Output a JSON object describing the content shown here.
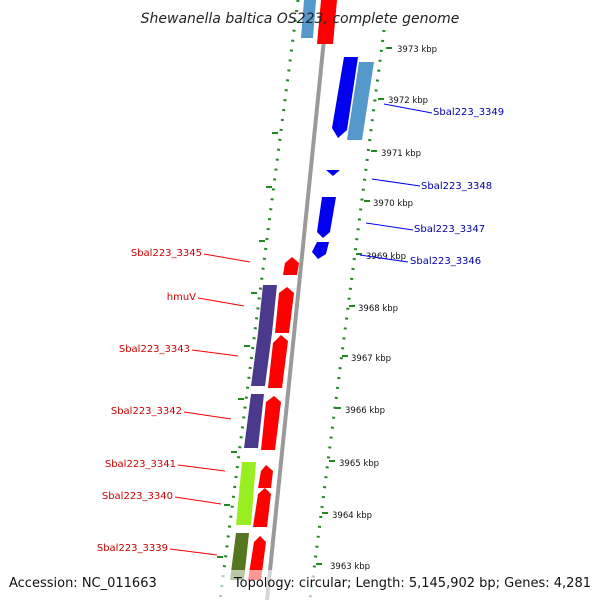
{
  "title": "Shewanella baltica OS223, complete genome",
  "footer": {
    "accession": "Accession: NC_011663",
    "topology": "Topology: circular; Length: 5,145,902 bp; Genes: 4,281"
  },
  "colors": {
    "forward_label": "#cc0000",
    "reverse_label": "#0000aa",
    "forward_gene": "#ff0000",
    "reverse_gene": "#0000ee",
    "purple_gene": "#4b3a8c",
    "light_green_gene": "#99ee22",
    "olive_gene": "#557722",
    "steel_blue_gene": "#5599cc",
    "guide_dots": "#228822"
  },
  "ticks": [
    {
      "label": "3973 kbp",
      "value": 3973
    },
    {
      "label": "3972 kbp",
      "value": 3972
    },
    {
      "label": "3971 kbp",
      "value": 3971
    },
    {
      "label": "3970 kbp",
      "value": 3970
    },
    {
      "label": "3969 kbp",
      "value": 3969
    },
    {
      "label": "3968 kbp",
      "value": 3968
    },
    {
      "label": "3967 kbp",
      "value": 3967
    },
    {
      "label": "3966 kbp",
      "value": 3966
    },
    {
      "label": "3965 kbp",
      "value": 3965
    },
    {
      "label": "3964 kbp",
      "value": 3964
    },
    {
      "label": "3963 kbp",
      "value": 3963
    }
  ],
  "genes_reverse_labels": [
    {
      "label": "Sbal223_3349"
    },
    {
      "label": "Sbal223_3348"
    },
    {
      "label": "Sbal223_3347"
    },
    {
      "label": "Sbal223_3346"
    }
  ],
  "genes_forward_labels": [
    {
      "label": "Sbal223_3345"
    },
    {
      "label": "hmuV"
    },
    {
      "label": "Sbal223_3343"
    },
    {
      "label": "Sbal223_3342"
    },
    {
      "label": "Sbal223_3341"
    },
    {
      "label": "Sbal223_3340"
    },
    {
      "label": "Sbal223_3339"
    }
  ]
}
